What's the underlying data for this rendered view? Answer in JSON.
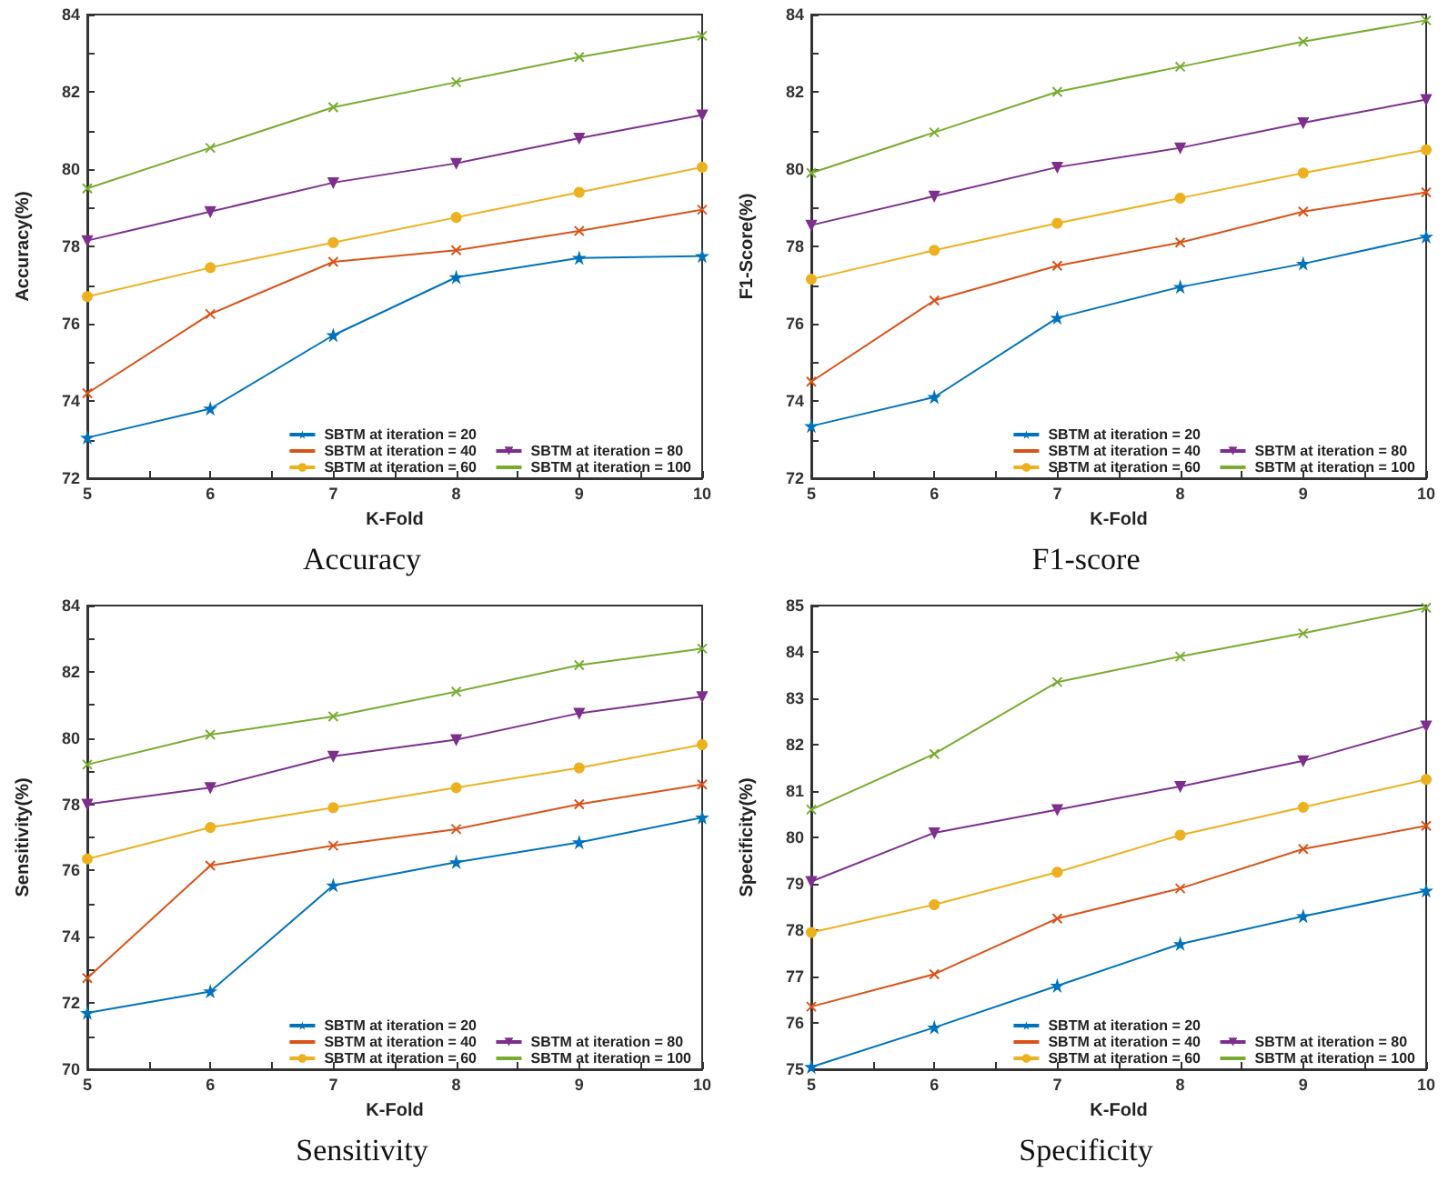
{
  "chart_data": [
    {
      "type": "line",
      "title": "Accuracy",
      "xlabel": "K-Fold",
      "ylabel": "Accuracy(%)",
      "x": [
        5,
        6,
        7,
        8,
        9,
        10
      ],
      "xlim": [
        5,
        10
      ],
      "xticks": [
        5,
        {
          "value": 5.5,
          "label": null
        },
        6,
        {
          "value": 6.5,
          "label": null
        },
        7,
        {
          "value": 7.5,
          "label": null
        },
        8,
        {
          "value": 8.5,
          "label": null
        },
        9,
        {
          "value": 9.5,
          "label": null
        },
        10
      ],
      "ylim": [
        72,
        84
      ],
      "yticks": [
        72,
        {
          "value": 73,
          "label": null
        },
        74,
        {
          "value": 75,
          "label": null
        },
        76,
        {
          "value": 77,
          "label": null
        },
        78,
        {
          "value": 79,
          "label": null
        },
        80,
        {
          "value": 81,
          "label": null
        },
        82,
        {
          "value": 83,
          "label": null
        },
        84
      ],
      "grid": false,
      "legend": "bottom right",
      "series": [
        {
          "name": "SBTM at iteration = 20",
          "color": "#0072bd",
          "marker": "star",
          "values": [
            73.05,
            73.8,
            75.7,
            77.2,
            77.7,
            77.75
          ]
        },
        {
          "name": "SBTM at iteration = 40",
          "color": "#d95319",
          "marker": "cross",
          "values": [
            74.2,
            76.25,
            77.6,
            77.9,
            78.4,
            78.95
          ]
        },
        {
          "name": "SBTM at iteration = 60",
          "color": "#edb120",
          "marker": "circle",
          "values": [
            76.7,
            77.45,
            78.1,
            78.75,
            79.4,
            80.05
          ]
        },
        {
          "name": "SBTM at iteration = 80",
          "color": "#7e2f8e",
          "marker": "triangle",
          "values": [
            78.15,
            78.9,
            79.65,
            80.15,
            80.8,
            81.4
          ]
        },
        {
          "name": "SBTM at iteration = 100",
          "color": "#77ac30",
          "marker": "cross",
          "values": [
            79.5,
            80.55,
            81.6,
            82.25,
            82.9,
            83.45
          ]
        }
      ]
    },
    {
      "type": "line",
      "title": "F1-score",
      "xlabel": "K-Fold",
      "ylabel": "F1-Score(%)",
      "x": [
        5,
        6,
        7,
        8,
        9,
        10
      ],
      "xlim": [
        5,
        10
      ],
      "xticks": [
        5,
        {
          "value": 5.5,
          "label": null
        },
        6,
        {
          "value": 6.5,
          "label": null
        },
        7,
        {
          "value": 7.5,
          "label": null
        },
        8,
        {
          "value": 8.5,
          "label": null
        },
        9,
        {
          "value": 9.5,
          "label": null
        },
        10
      ],
      "ylim": [
        72,
        84
      ],
      "yticks": [
        72,
        {
          "value": 73,
          "label": null
        },
        74,
        {
          "value": 75,
          "label": null
        },
        76,
        {
          "value": 77,
          "label": null
        },
        78,
        {
          "value": 79,
          "label": null
        },
        80,
        {
          "value": 81,
          "label": null
        },
        82,
        {
          "value": 83,
          "label": null
        },
        84
      ],
      "grid": false,
      "legend": "bottom right",
      "series": [
        {
          "name": "SBTM at iteration = 20",
          "color": "#0072bd",
          "marker": "star",
          "values": [
            73.35,
            74.1,
            76.15,
            76.95,
            77.55,
            78.25
          ]
        },
        {
          "name": "SBTM at iteration = 40",
          "color": "#d95319",
          "marker": "cross",
          "values": [
            74.5,
            76.6,
            77.5,
            78.1,
            78.9,
            79.4
          ]
        },
        {
          "name": "SBTM at iteration = 60",
          "color": "#edb120",
          "marker": "circle",
          "values": [
            77.15,
            77.9,
            78.6,
            79.25,
            79.9,
            80.5
          ]
        },
        {
          "name": "SBTM at iteration = 80",
          "color": "#7e2f8e",
          "marker": "triangle",
          "values": [
            78.55,
            79.3,
            80.05,
            80.55,
            81.2,
            81.8
          ]
        },
        {
          "name": "SBTM at iteration = 100",
          "color": "#77ac30",
          "marker": "cross",
          "values": [
            79.9,
            80.95,
            82.0,
            82.65,
            83.3,
            83.85
          ]
        }
      ]
    },
    {
      "type": "line",
      "title": "Sensitivity",
      "xlabel": "K-Fold",
      "ylabel": "Sensitivity(%)",
      "x": [
        5,
        6,
        7,
        8,
        9,
        10
      ],
      "xlim": [
        5,
        10
      ],
      "xticks": [
        5,
        {
          "value": 5.5,
          "label": null
        },
        6,
        {
          "value": 6.5,
          "label": null
        },
        7,
        {
          "value": 7.5,
          "label": null
        },
        8,
        {
          "value": 8.5,
          "label": null
        },
        9,
        {
          "value": 9.5,
          "label": null
        },
        10
      ],
      "ylim": [
        70,
        84
      ],
      "yticks": [
        70,
        {
          "value": 71,
          "label": null
        },
        72,
        {
          "value": 73,
          "label": null
        },
        74,
        {
          "value": 75,
          "label": null
        },
        76,
        {
          "value": 77,
          "label": null
        },
        78,
        {
          "value": 79,
          "label": null
        },
        80,
        {
          "value": 81,
          "label": null
        },
        82,
        {
          "value": 83,
          "label": null
        },
        84
      ],
      "grid": false,
      "legend": "bottom right",
      "series": [
        {
          "name": "SBTM at iteration = 20",
          "color": "#0072bd",
          "marker": "star",
          "values": [
            71.7,
            72.35,
            75.55,
            76.25,
            76.85,
            77.6
          ]
        },
        {
          "name": "SBTM at iteration = 40",
          "color": "#d95319",
          "marker": "cross",
          "values": [
            72.75,
            76.15,
            76.75,
            77.25,
            78.0,
            78.6
          ]
        },
        {
          "name": "SBTM at iteration = 60",
          "color": "#edb120",
          "marker": "circle",
          "values": [
            76.35,
            77.3,
            77.9,
            78.5,
            79.1,
            79.8
          ]
        },
        {
          "name": "SBTM at iteration = 80",
          "color": "#7e2f8e",
          "marker": "triangle",
          "values": [
            78.0,
            78.5,
            79.45,
            79.95,
            80.75,
            81.25
          ]
        },
        {
          "name": "SBTM at iteration = 100",
          "color": "#77ac30",
          "marker": "cross",
          "values": [
            79.2,
            80.1,
            80.65,
            81.4,
            82.2,
            82.7
          ]
        }
      ]
    },
    {
      "type": "line",
      "title": "Specificity",
      "xlabel": "K-Fold",
      "ylabel": "Specificity(%)",
      "x": [
        5,
        6,
        7,
        8,
        9,
        10
      ],
      "xlim": [
        5,
        10
      ],
      "xticks": [
        5,
        {
          "value": 5.5,
          "label": null
        },
        6,
        {
          "value": 6.5,
          "label": null
        },
        7,
        {
          "value": 7.5,
          "label": null
        },
        8,
        {
          "value": 8.5,
          "label": null
        },
        9,
        {
          "value": 9.5,
          "label": null
        },
        10
      ],
      "ylim": [
        75,
        85
      ],
      "yticks": [
        75,
        76,
        77,
        78,
        79,
        80,
        81,
        82,
        83,
        84,
        85
      ],
      "grid": false,
      "legend": "bottom right",
      "series": [
        {
          "name": "SBTM at iteration = 20",
          "color": "#0072bd",
          "marker": "star",
          "values": [
            75.05,
            75.9,
            76.8,
            77.7,
            78.3,
            78.85
          ]
        },
        {
          "name": "SBTM at iteration = 40",
          "color": "#d95319",
          "marker": "cross",
          "values": [
            76.35,
            77.05,
            78.25,
            78.9,
            79.75,
            80.25
          ]
        },
        {
          "name": "SBTM at iteration = 60",
          "color": "#edb120",
          "marker": "circle",
          "values": [
            77.95,
            78.55,
            79.25,
            80.05,
            80.65,
            81.25
          ]
        },
        {
          "name": "SBTM at iteration = 80",
          "color": "#7e2f8e",
          "marker": "triangle",
          "values": [
            79.05,
            80.1,
            80.6,
            81.1,
            81.65,
            82.4
          ]
        },
        {
          "name": "SBTM at iteration = 100",
          "color": "#77ac30",
          "marker": "cross",
          "values": [
            80.6,
            81.8,
            83.35,
            83.9,
            84.4,
            84.95
          ]
        }
      ]
    }
  ]
}
